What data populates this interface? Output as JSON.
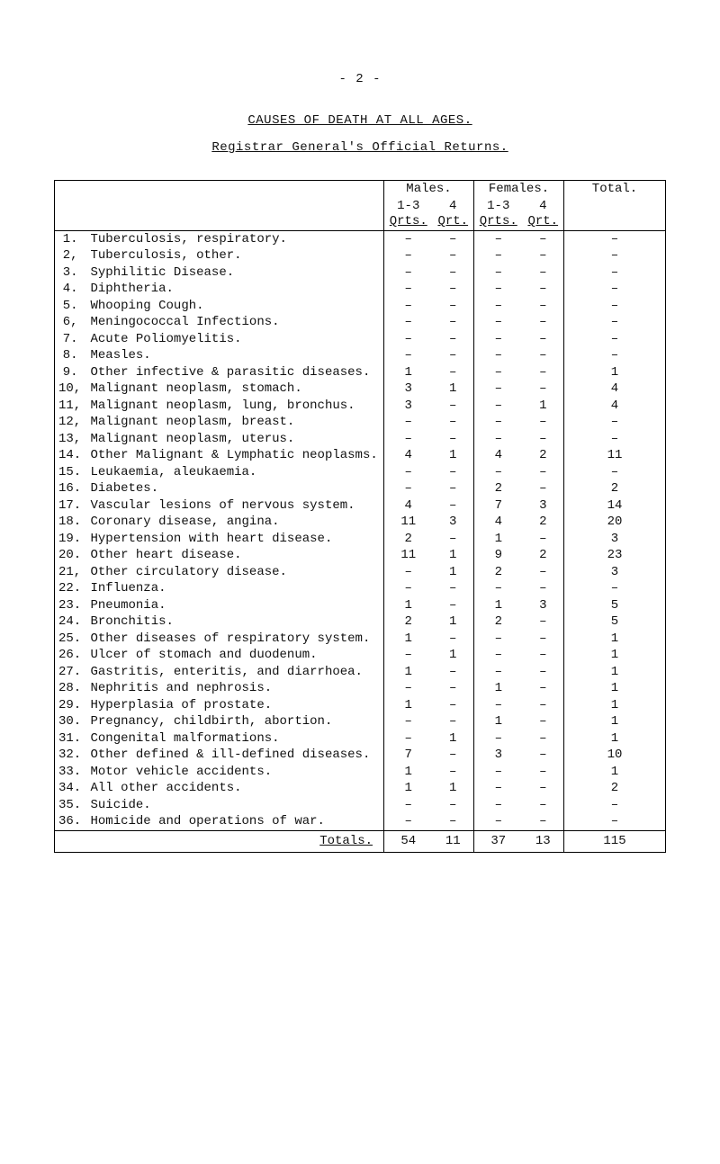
{
  "page_number_text": "- 2 -",
  "heading1": "CAUSES OF DEATH AT ALL AGES.",
  "heading2": "Registrar General's Official Returns.",
  "col_headers": {
    "males": "Males.",
    "females": "Females.",
    "total": "Total.",
    "sub_m1": "1-3",
    "sub_m2": "4",
    "sub_m_line2a": "Qrts.",
    "sub_m_line2b": "Qrt.",
    "sub_f1": "1-3",
    "sub_f2": "4",
    "sub_f_line2a": "Qrts.",
    "sub_f_line2b": "Qrt."
  },
  "dash": "–",
  "rows": [
    {
      "n": "1.",
      "cause": "Tuberculosis, respiratory.",
      "m1": "–",
      "m2": "–",
      "f1": "–",
      "f2": "–",
      "t": "–"
    },
    {
      "n": "2,",
      "cause": "Tuberculosis, other.",
      "m1": "–",
      "m2": "–",
      "f1": "–",
      "f2": "–",
      "t": "–"
    },
    {
      "n": "3.",
      "cause": "Syphilitic Disease.",
      "m1": "–",
      "m2": "–",
      "f1": "–",
      "f2": "–",
      "t": "–"
    },
    {
      "n": "4.",
      "cause": "Diphtheria.",
      "m1": "–",
      "m2": "–",
      "f1": "–",
      "f2": "–",
      "t": "–"
    },
    {
      "n": "5.",
      "cause": "Whooping Cough.",
      "m1": "–",
      "m2": "–",
      "f1": "–",
      "f2": "–",
      "t": "–"
    },
    {
      "n": "6,",
      "cause": "Meningococcal Infections.",
      "m1": "–",
      "m2": "–",
      "f1": "–",
      "f2": "–",
      "t": "–"
    },
    {
      "n": "7.",
      "cause": "Acute Poliomyelitis.",
      "m1": "–",
      "m2": "–",
      "f1": "–",
      "f2": "–",
      "t": "–"
    },
    {
      "n": "8.",
      "cause": "Measles.",
      "m1": "–",
      "m2": "–",
      "f1": "–",
      "f2": "–",
      "t": "–"
    },
    {
      "n": "9.",
      "cause": "Other infective & parasitic diseases.",
      "m1": "1",
      "m2": "–",
      "f1": "–",
      "f2": "–",
      "t": "1"
    },
    {
      "n": "10,",
      "cause": "Malignant neoplasm, stomach.",
      "m1": "3",
      "m2": "1",
      "f1": "–",
      "f2": "–",
      "t": "4"
    },
    {
      "n": "11,",
      "cause": "Malignant neoplasm, lung, bronchus.",
      "m1": "3",
      "m2": "–",
      "f1": "–",
      "f2": "1",
      "t": "4"
    },
    {
      "n": "12,",
      "cause": "Malignant neoplasm, breast.",
      "m1": "–",
      "m2": "–",
      "f1": "–",
      "f2": "–",
      "t": "–"
    },
    {
      "n": "13,",
      "cause": "Malignant neoplasm, uterus.",
      "m1": "–",
      "m2": "–",
      "f1": "–",
      "f2": "–",
      "t": "–"
    },
    {
      "n": "14.",
      "cause": "Other Malignant & Lymphatic neoplasms.",
      "m1": "4",
      "m2": "1",
      "f1": "4",
      "f2": "2",
      "t": "11"
    },
    {
      "n": "15.",
      "cause": "Leukaemia, aleukaemia.",
      "m1": "–",
      "m2": "–",
      "f1": "–",
      "f2": "–",
      "t": "–"
    },
    {
      "n": "16.",
      "cause": "Diabetes.",
      "m1": "–",
      "m2": "–",
      "f1": "2",
      "f2": "–",
      "t": "2"
    },
    {
      "n": "17.",
      "cause": "Vascular lesions of nervous system.",
      "m1": "4",
      "m2": "–",
      "f1": "7",
      "f2": "3",
      "t": "14"
    },
    {
      "n": "18.",
      "cause": "Coronary disease, angina.",
      "m1": "11",
      "m2": "3",
      "f1": "4",
      "f2": "2",
      "t": "20"
    },
    {
      "n": "19.",
      "cause": "Hypertension with heart disease.",
      "m1": "2",
      "m2": "–",
      "f1": "1",
      "f2": "–",
      "t": "3"
    },
    {
      "n": "20.",
      "cause": "Other heart disease.",
      "m1": "11",
      "m2": "1",
      "f1": "9",
      "f2": "2",
      "t": "23"
    },
    {
      "n": "21,",
      "cause": "Other circulatory disease.",
      "m1": "–",
      "m2": "1",
      "f1": "2",
      "f2": "–",
      "t": "3"
    },
    {
      "n": "22.",
      "cause": "Influenza.",
      "m1": "–",
      "m2": "–",
      "f1": "–",
      "f2": "–",
      "t": "–"
    },
    {
      "n": "23.",
      "cause": "Pneumonia.",
      "m1": "1",
      "m2": "–",
      "f1": "1",
      "f2": "3",
      "t": "5"
    },
    {
      "n": "24.",
      "cause": "Bronchitis.",
      "m1": "2",
      "m2": "1",
      "f1": "2",
      "f2": "–",
      "t": "5"
    },
    {
      "n": "25.",
      "cause": "Other diseases of respiratory system.",
      "m1": "1",
      "m2": "–",
      "f1": "–",
      "f2": "–",
      "t": "1"
    },
    {
      "n": "26.",
      "cause": "Ulcer of stomach and duodenum.",
      "m1": "–",
      "m2": "1",
      "f1": "–",
      "f2": "–",
      "t": "1"
    },
    {
      "n": "27.",
      "cause": "Gastritis, enteritis, and diarrhoea.",
      "m1": "1",
      "m2": "–",
      "f1": "–",
      "f2": "–",
      "t": "1"
    },
    {
      "n": "28.",
      "cause": "Nephritis and nephrosis.",
      "m1": "–",
      "m2": "–",
      "f1": "1",
      "f2": "–",
      "t": "1"
    },
    {
      "n": "29.",
      "cause": "Hyperplasia of prostate.",
      "m1": "1",
      "m2": "–",
      "f1": "–",
      "f2": "–",
      "t": "1"
    },
    {
      "n": "30.",
      "cause": "Pregnancy, childbirth, abortion.",
      "m1": "–",
      "m2": "–",
      "f1": "1",
      "f2": "–",
      "t": "1"
    },
    {
      "n": "31.",
      "cause": "Congenital malformations.",
      "m1": "–",
      "m2": "1",
      "f1": "–",
      "f2": "–",
      "t": "1"
    },
    {
      "n": "32.",
      "cause": "Other defined & ill-defined diseases.",
      "m1": "7",
      "m2": "–",
      "f1": "3",
      "f2": "–",
      "t": "10"
    },
    {
      "n": "33.",
      "cause": "Motor vehicle accidents.",
      "m1": "1",
      "m2": "–",
      "f1": "–",
      "f2": "–",
      "t": "1"
    },
    {
      "n": "34.",
      "cause": "All other accidents.",
      "m1": "1",
      "m2": "1",
      "f1": "–",
      "f2": "–",
      "t": "2"
    },
    {
      "n": "35.",
      "cause": "Suicide.",
      "m1": "–",
      "m2": "–",
      "f1": "–",
      "f2": "–",
      "t": "–"
    },
    {
      "n": "36.",
      "cause": "Homicide and operations of war.",
      "m1": "–",
      "m2": "–",
      "f1": "–",
      "f2": "–",
      "t": "–"
    }
  ],
  "totals": {
    "label": "Totals.",
    "m1": "54",
    "m2": "11",
    "f1": "37",
    "f2": "13",
    "t": "115"
  }
}
